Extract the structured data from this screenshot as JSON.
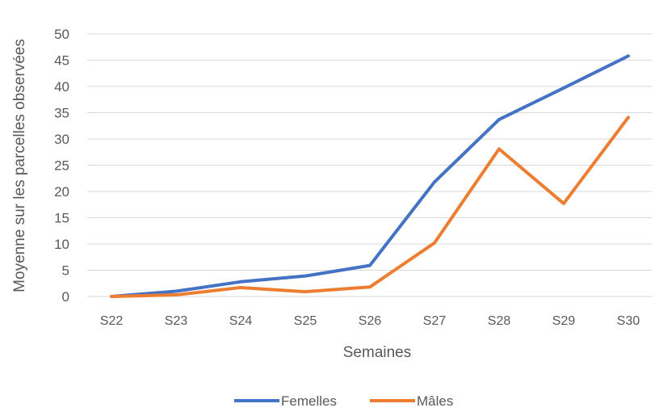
{
  "chart_data": {
    "type": "line",
    "categories": [
      "S22",
      "S23",
      "S24",
      "S25",
      "S26",
      "S27",
      "S28",
      "S29",
      "S30"
    ],
    "series": [
      {
        "name": "Femelles",
        "color": "#4472C4",
        "values": [
          0,
          1.0,
          2.8,
          3.9,
          5.9,
          21.8,
          33.7,
          39.7,
          45.8
        ]
      },
      {
        "name": "Mâles",
        "color": "#ED7D31",
        "values": [
          0,
          0.3,
          1.7,
          0.9,
          1.8,
          10.2,
          28.1,
          17.7,
          34.1
        ]
      }
    ],
    "xlabel": "Semaines",
    "ylabel": "Moyenne sur les parcelles observées",
    "ylim": [
      0,
      50
    ],
    "yticks": [
      0,
      5,
      10,
      15,
      20,
      25,
      30,
      35,
      40,
      45,
      50
    ],
    "grid": true,
    "legend_position": "bottom"
  }
}
